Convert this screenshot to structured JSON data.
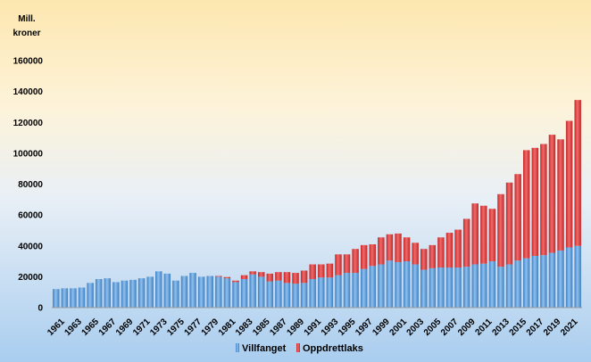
{
  "chart_data": {
    "type": "bar",
    "stacked": true,
    "title": "",
    "unit_label_line1": "Mill.",
    "unit_label_line2": "kroner",
    "xlabel": "",
    "ylabel": "Mill. kroner",
    "ylim": [
      0,
      160000
    ],
    "y_ticks": [
      0,
      20000,
      40000,
      60000,
      80000,
      100000,
      120000,
      140000,
      160000
    ],
    "y_tick_labels": [
      "0",
      "20000",
      "40000",
      "60000",
      "80000",
      "100000",
      "120000",
      "140000",
      "160000"
    ],
    "x_tick_labels": [
      "1961",
      "1963",
      "1965",
      "1967",
      "1969",
      "1971",
      "1973",
      "1975",
      "1977",
      "1979",
      "1981",
      "1983",
      "1985",
      "1987",
      "1989",
      "1991",
      "1993",
      "1995",
      "1997",
      "1999",
      "2001",
      "2003",
      "2005",
      "2007",
      "2009",
      "2011",
      "2013",
      "2015",
      "2017",
      "2019",
      "2021"
    ],
    "categories": [
      "1961",
      "1962",
      "1963",
      "1964",
      "1965",
      "1966",
      "1967",
      "1968",
      "1969",
      "1970",
      "1971",
      "1972",
      "1973",
      "1974",
      "1975",
      "1976",
      "1977",
      "1978",
      "1979",
      "1980",
      "1981",
      "1982",
      "1983",
      "1984",
      "1985",
      "1986",
      "1987",
      "1988",
      "1989",
      "1990",
      "1991",
      "1992",
      "1993",
      "1994",
      "1995",
      "1996",
      "1997",
      "1998",
      "1999",
      "2000",
      "2001",
      "2002",
      "2003",
      "2004",
      "2005",
      "2006",
      "2007",
      "2008",
      "2009",
      "2010",
      "2011",
      "2012",
      "2013",
      "2014",
      "2015",
      "2016",
      "2017",
      "2018",
      "2019",
      "2020",
      "2021",
      "2022"
    ],
    "series": [
      {
        "name": "Villfanget",
        "color": "#5b9bd5",
        "values": [
          12000,
          12500,
          12500,
          13000,
          16000,
          18500,
          19000,
          16500,
          17500,
          18000,
          19000,
          20000,
          23500,
          22000,
          17500,
          20500,
          22500,
          20000,
          20500,
          20000,
          19000,
          16500,
          18500,
          21500,
          20000,
          17000,
          17500,
          16000,
          15500,
          16000,
          18500,
          19500,
          19500,
          21000,
          22500,
          22500,
          25000,
          27000,
          28000,
          30500,
          29500,
          30000,
          28000,
          24500,
          25500,
          26000,
          26000,
          26000,
          26500,
          28000,
          28500,
          30000,
          26500,
          28000,
          30500,
          32000,
          33500,
          34000,
          35500,
          37000,
          39000,
          40000
        ]
      },
      {
        "name": "Oppdrettlaks",
        "color": "#e03a3a",
        "values": [
          0,
          0,
          0,
          0,
          0,
          0,
          0,
          0,
          0,
          0,
          0,
          0,
          0,
          0,
          0,
          0,
          0,
          0,
          0,
          500,
          800,
          1000,
          2500,
          2000,
          3000,
          5000,
          5500,
          7000,
          7000,
          8000,
          9500,
          8500,
          9000,
          13500,
          12000,
          15500,
          15500,
          14000,
          17500,
          17000,
          18500,
          15500,
          14000,
          13500,
          15000,
          19500,
          22500,
          24500,
          31000,
          39500,
          37500,
          34000,
          47000,
          53000,
          56000,
          70000,
          70000,
          72000,
          76500,
          72000,
          82000,
          94500
        ]
      }
    ],
    "legend": [
      "Villfanget",
      "Oppdrettlaks"
    ],
    "legend_position": "bottom-center",
    "grid": false,
    "background_gradient": [
      "#fde7b0",
      "#fdf3da",
      "#e8eff6",
      "#a9cdef"
    ]
  }
}
